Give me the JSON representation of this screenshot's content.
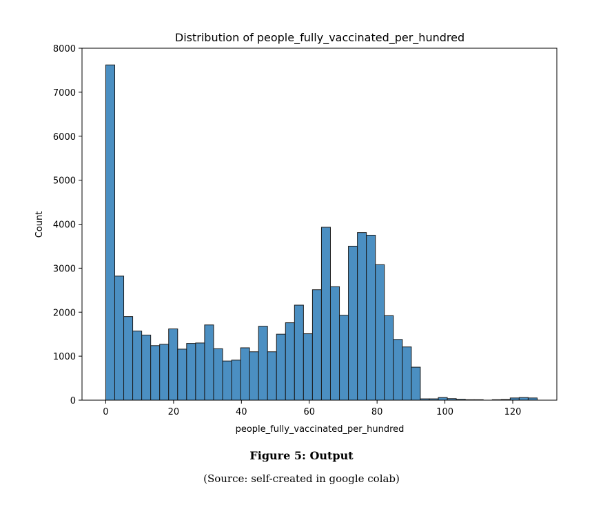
{
  "chart_data": {
    "type": "bar",
    "title": "Distribution of people_fully_vaccinated_per_hundred",
    "xlabel": "people_fully_vaccinated_per_hundred",
    "ylabel": "Count",
    "xlim": [
      -7,
      133
    ],
    "ylim": [
      0,
      8000
    ],
    "xticks": [
      0,
      20,
      40,
      60,
      80,
      100,
      120
    ],
    "yticks": [
      0,
      1000,
      2000,
      3000,
      4000,
      5000,
      6000,
      7000,
      8000
    ],
    "bin_start": 0,
    "bin_width": 2.65,
    "values": [
      7620,
      2820,
      1900,
      1570,
      1480,
      1240,
      1270,
      1620,
      1160,
      1290,
      1300,
      1710,
      1170,
      890,
      910,
      1190,
      1100,
      1680,
      1100,
      1500,
      1760,
      2160,
      1510,
      2510,
      3930,
      2580,
      1930,
      3500,
      3810,
      3750,
      3080,
      1920,
      1380,
      1210,
      750,
      30,
      30,
      60,
      35,
      20,
      10,
      10,
      0,
      10,
      15,
      50,
      60,
      50
    ],
    "bar_color": "#4b8fc2",
    "grid": false,
    "legend": "none"
  },
  "caption": {
    "label": "Figure 5: Output",
    "source": "(Source: self-created in google colab)"
  }
}
